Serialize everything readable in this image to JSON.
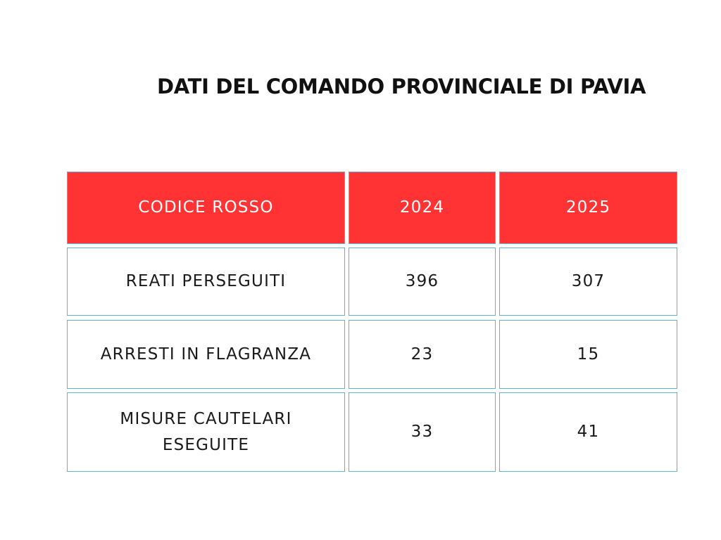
{
  "title": "DATI DEL COMANDO PROVINCIALE DI PAVIA",
  "colors": {
    "header_background": "#ff3333",
    "header_text": "#ffffff",
    "cell_border": "#5bb4d6",
    "body_text": "#1a1a1a"
  },
  "table": {
    "headers": [
      "CODICE ROSSO",
      "2024",
      "2025"
    ],
    "rows": [
      [
        "REATI PERSEGUITI",
        "396",
        "307"
      ],
      [
        "ARRESTI IN FLAGRANZA",
        "23",
        "15"
      ],
      [
        "MISURE CAUTELARI ESEGUITE",
        "33",
        "41"
      ]
    ]
  }
}
